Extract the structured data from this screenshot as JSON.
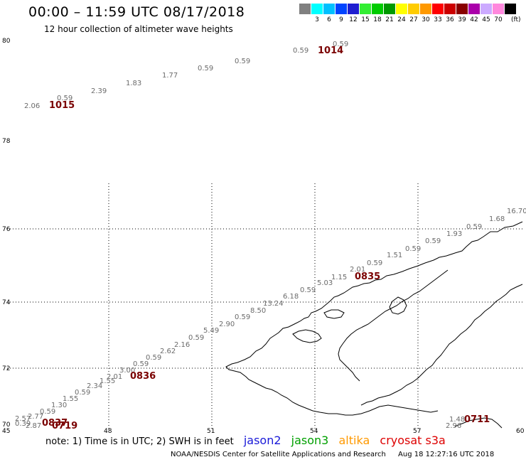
{
  "header": {
    "title": "00:00 – 11:59 UTC 08/17/2018",
    "subtitle": "12 hour collection of altimeter wave heights"
  },
  "color_scale": {
    "unit": "(ft)",
    "entries": [
      {
        "label": "",
        "color": "#808080"
      },
      {
        "label": "3",
        "color": "#00ffff"
      },
      {
        "label": "6",
        "color": "#00c0ff"
      },
      {
        "label": "9",
        "color": "#0044ff"
      },
      {
        "label": "12",
        "color": "#1f1fd0"
      },
      {
        "label": "15",
        "color": "#33ee33"
      },
      {
        "label": "18",
        "color": "#00cc00"
      },
      {
        "label": "21",
        "color": "#009900"
      },
      {
        "label": "24",
        "color": "#ffff00"
      },
      {
        "label": "27",
        "color": "#ffcc00"
      },
      {
        "label": "30",
        "color": "#ff9900"
      },
      {
        "label": "33",
        "color": "#ff0000"
      },
      {
        "label": "36",
        "color": "#cc0000"
      },
      {
        "label": "39",
        "color": "#880000"
      },
      {
        "label": "42",
        "color": "#aa00aa"
      },
      {
        "label": "45",
        "color": "#ccaaff"
      },
      {
        "label": "70",
        "color": "#ff88dd"
      },
      {
        "label": "",
        "color": "#000000"
      }
    ]
  },
  "axes": {
    "lon_ticks": [
      "45",
      "48",
      "51",
      "54",
      "57",
      "60"
    ],
    "lat_ticks": [
      "70",
      "72",
      "74",
      "76",
      "78",
      "80"
    ]
  },
  "passes": [
    {
      "label": "1014",
      "color": "#7a0000"
    },
    {
      "label": "1015",
      "color": "#7a0000"
    },
    {
      "label": "0835",
      "color": "#7a0000"
    },
    {
      "label": "0836",
      "color": "#7a0000"
    },
    {
      "label": "0837",
      "color": "#7a0000"
    },
    {
      "label": "0719",
      "color": "#ff9900"
    },
    {
      "label": "0711",
      "color": "#cc0000"
    }
  ],
  "wave_labels": [
    {
      "v": "0.59",
      "c": "#6b6b6b"
    },
    {
      "v": "0.59",
      "c": "#6b6b6b"
    },
    {
      "v": "0.59",
      "c": "#6b6b6b"
    },
    {
      "v": "0.59",
      "c": "#6b6b6b"
    },
    {
      "v": "1.77",
      "c": "#6b6b6b"
    },
    {
      "v": "1.83",
      "c": "#6b6b6b"
    },
    {
      "v": "2.39",
      "c": "#6b6b6b"
    },
    {
      "v": "0.59",
      "c": "#6b6b6b"
    },
    {
      "v": "2.06",
      "c": "#6b6b6b"
    },
    {
      "v": "16.70",
      "c": "#00aa00"
    },
    {
      "v": "1.68",
      "c": "#6b6b6b"
    },
    {
      "v": "0.59",
      "c": "#6b6b6b"
    },
    {
      "v": "1.93",
      "c": "#6b6b6b"
    },
    {
      "v": "0.59",
      "c": "#6b6b6b"
    },
    {
      "v": "0.59",
      "c": "#6b6b6b"
    },
    {
      "v": "1.51",
      "c": "#6b6b6b"
    },
    {
      "v": "0.59",
      "c": "#6b6b6b"
    },
    {
      "v": "2.01",
      "c": "#6b6b6b"
    },
    {
      "v": "1.15",
      "c": "#6b6b6b"
    },
    {
      "v": "5.03",
      "c": "#00c8d0"
    },
    {
      "v": "0.59",
      "c": "#6b6b6b"
    },
    {
      "v": "6.18",
      "c": "#00c8d0"
    },
    {
      "v": "13.24",
      "c": "#33dd33"
    },
    {
      "v": "8.50",
      "c": "#00c8d0"
    },
    {
      "v": "0.59",
      "c": "#6b6b6b"
    },
    {
      "v": "2.90",
      "c": "#6b6b6b"
    },
    {
      "v": "5.49",
      "c": "#00c8d0"
    },
    {
      "v": "0.59",
      "c": "#6b6b6b"
    },
    {
      "v": "2.16",
      "c": "#6b6b6b"
    },
    {
      "v": "2.62",
      "c": "#6b6b6b"
    },
    {
      "v": "0.59",
      "c": "#6b6b6b"
    },
    {
      "v": "0.59",
      "c": "#6b6b6b"
    },
    {
      "v": "3.00",
      "c": "#00c8d0"
    },
    {
      "v": "2.01",
      "c": "#6b6b6b"
    },
    {
      "v": "1.55",
      "c": "#6b6b6b"
    },
    {
      "v": "2.34",
      "c": "#6b6b6b"
    },
    {
      "v": "0.59",
      "c": "#6b6b6b"
    },
    {
      "v": "1.55",
      "c": "#6b6b6b"
    },
    {
      "v": "1.30",
      "c": "#6b6b6b"
    },
    {
      "v": "0.59",
      "c": "#6b6b6b"
    },
    {
      "v": "2.77",
      "c": "#6b6b6b"
    },
    {
      "v": "2.57",
      "c": "#6b6b6b"
    },
    {
      "v": "0.39",
      "c": "#6b6b6b"
    },
    {
      "v": "2.87",
      "c": "#6b6b6b"
    },
    {
      "v": "1.48",
      "c": "#6b6b6b"
    },
    {
      "v": "2.96",
      "c": "#6b6b6b"
    }
  ],
  "legend": {
    "note": "note: 1) Time is in UTC; 2) SWH is in feet",
    "satellites": [
      {
        "name": "jason2",
        "color": "#1a1ad8"
      },
      {
        "name": "jason3",
        "color": "#00a000"
      },
      {
        "name": "altika",
        "color": "#ff9900"
      },
      {
        "name": "cryosat s3a",
        "color": "#dd0000"
      }
    ]
  },
  "footer": {
    "credit": "NOAA/NESDIS Center for Satellite Applications and Research",
    "timestamp": "Aug 18 12:27:16 UTC 2018"
  }
}
